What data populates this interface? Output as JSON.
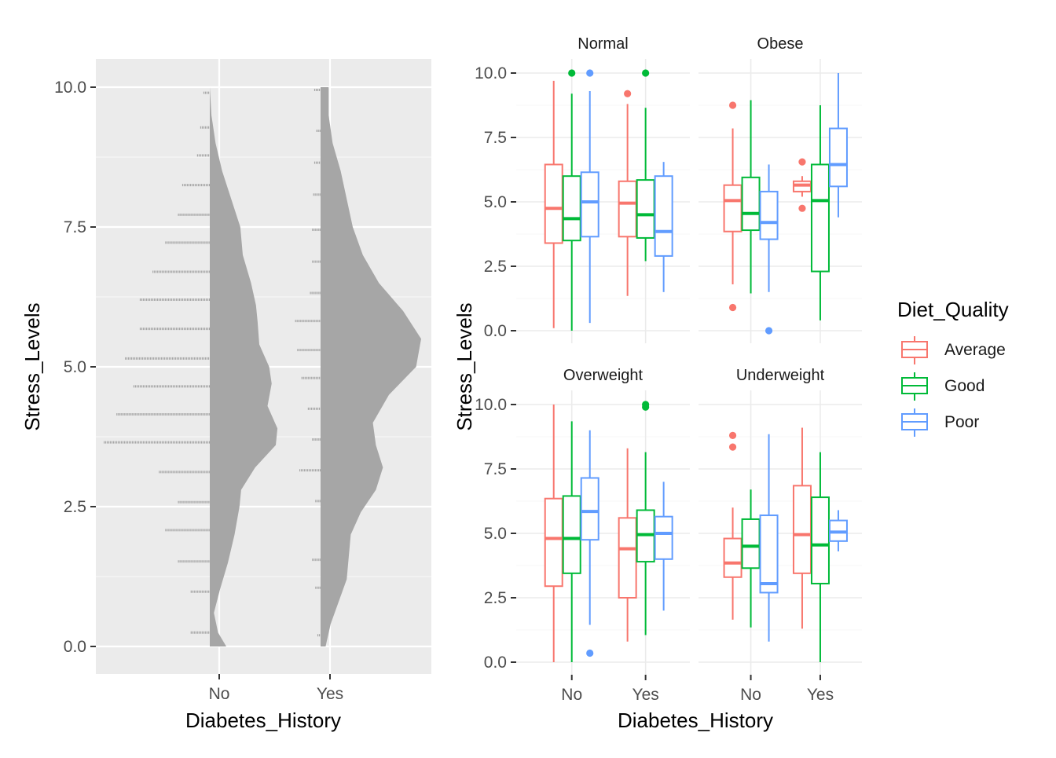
{
  "chart_data": [
    {
      "type": "raincloud",
      "xlabel": "Diabetes_History",
      "ylabel": "Stress_Levels",
      "categories": [
        "No",
        "Yes"
      ],
      "ylim": [
        0,
        10
      ],
      "y_ticks": [
        "0.0",
        "2.5",
        "5.0",
        "7.5",
        "10.0"
      ],
      "grid": true,
      "groups": [
        {
          "name": "No",
          "density_profile": [
            {
              "y": 0.0,
              "width": 0.2
            },
            {
              "y": 0.25,
              "width": 0.1
            },
            {
              "y": 0.6,
              "width": 0.05
            },
            {
              "y": 1.0,
              "width": 0.12
            },
            {
              "y": 1.5,
              "width": 0.22
            },
            {
              "y": 2.0,
              "width": 0.3
            },
            {
              "y": 2.5,
              "width": 0.36
            },
            {
              "y": 2.8,
              "width": 0.38
            },
            {
              "y": 3.2,
              "width": 0.55
            },
            {
              "y": 3.6,
              "width": 0.8
            },
            {
              "y": 3.9,
              "width": 0.82
            },
            {
              "y": 4.3,
              "width": 0.7
            },
            {
              "y": 4.7,
              "width": 0.75
            },
            {
              "y": 5.0,
              "width": 0.72
            },
            {
              "y": 5.4,
              "width": 0.6
            },
            {
              "y": 5.8,
              "width": 0.58
            },
            {
              "y": 6.1,
              "width": 0.56
            },
            {
              "y": 6.5,
              "width": 0.5
            },
            {
              "y": 7.0,
              "width": 0.4
            },
            {
              "y": 7.5,
              "width": 0.37
            },
            {
              "y": 8.0,
              "width": 0.26
            },
            {
              "y": 8.5,
              "width": 0.15
            },
            {
              "y": 9.0,
              "width": 0.07
            },
            {
              "y": 9.5,
              "width": 0.02
            },
            {
              "y": 10.0,
              "width": 0.0
            }
          ],
          "rain_bins": [
            {
              "y": 0.25,
              "count": 0.18
            },
            {
              "y": 0.98,
              "count": 0.18
            },
            {
              "y": 1.52,
              "count": 0.3
            },
            {
              "y": 2.08,
              "count": 0.42
            },
            {
              "y": 2.58,
              "count": 0.3
            },
            {
              "y": 3.12,
              "count": 0.48
            },
            {
              "y": 3.65,
              "count": 1.0
            },
            {
              "y": 4.15,
              "count": 0.88
            },
            {
              "y": 4.65,
              "count": 0.72
            },
            {
              "y": 5.15,
              "count": 0.8
            },
            {
              "y": 5.68,
              "count": 0.66
            },
            {
              "y": 6.2,
              "count": 0.66
            },
            {
              "y": 6.7,
              "count": 0.54
            },
            {
              "y": 7.22,
              "count": 0.42
            },
            {
              "y": 7.72,
              "count": 0.3
            },
            {
              "y": 8.25,
              "count": 0.26
            },
            {
              "y": 8.78,
              "count": 0.12
            },
            {
              "y": 9.28,
              "count": 0.09
            },
            {
              "y": 9.9,
              "count": 0.06
            }
          ]
        },
        {
          "name": "Yes",
          "density_profile": [
            {
              "y": 0.0,
              "width": 0.05
            },
            {
              "y": 0.4,
              "width": 0.1
            },
            {
              "y": 0.8,
              "width": 0.18
            },
            {
              "y": 1.2,
              "width": 0.26
            },
            {
              "y": 1.6,
              "width": 0.28
            },
            {
              "y": 2.0,
              "width": 0.3
            },
            {
              "y": 2.4,
              "width": 0.4
            },
            {
              "y": 2.8,
              "width": 0.55
            },
            {
              "y": 3.2,
              "width": 0.62
            },
            {
              "y": 3.6,
              "width": 0.55
            },
            {
              "y": 4.0,
              "width": 0.52
            },
            {
              "y": 4.5,
              "width": 0.68
            },
            {
              "y": 5.0,
              "width": 0.95
            },
            {
              "y": 5.5,
              "width": 1.0
            },
            {
              "y": 6.0,
              "width": 0.82
            },
            {
              "y": 6.5,
              "width": 0.58
            },
            {
              "y": 7.0,
              "width": 0.42
            },
            {
              "y": 7.5,
              "width": 0.32
            },
            {
              "y": 8.0,
              "width": 0.26
            },
            {
              "y": 8.5,
              "width": 0.2
            },
            {
              "y": 9.0,
              "width": 0.12
            },
            {
              "y": 9.5,
              "width": 0.08
            },
            {
              "y": 10.0,
              "width": 0.08
            }
          ],
          "rain_bins": [
            {
              "y": 0.2,
              "count": 0.03
            },
            {
              "y": 1.05,
              "count": 0.05
            },
            {
              "y": 1.55,
              "count": 0.08
            },
            {
              "y": 2.6,
              "count": 0.05
            },
            {
              "y": 3.15,
              "count": 0.2
            },
            {
              "y": 3.7,
              "count": 0.08
            },
            {
              "y": 4.25,
              "count": 0.12
            },
            {
              "y": 4.8,
              "count": 0.18
            },
            {
              "y": 5.3,
              "count": 0.22
            },
            {
              "y": 5.82,
              "count": 0.24
            },
            {
              "y": 6.32,
              "count": 0.1
            },
            {
              "y": 6.88,
              "count": 0.08
            },
            {
              "y": 7.45,
              "count": 0.08
            },
            {
              "y": 8.08,
              "count": 0.07
            },
            {
              "y": 8.65,
              "count": 0.06
            },
            {
              "y": 9.22,
              "count": 0.04
            },
            {
              "y": 9.95,
              "count": 0.06
            }
          ]
        }
      ]
    },
    {
      "type": "boxplot",
      "xlabel": "Diabetes_History",
      "ylabel": "Stress_Levels",
      "categories": [
        "No",
        "Yes"
      ],
      "ylim": [
        0,
        10
      ],
      "y_ticks": [
        "0.0",
        "2.5",
        "5.0",
        "7.5",
        "10.0"
      ],
      "grid": true,
      "legend": {
        "title": "Diet_Quality",
        "position": "right",
        "items": [
          {
            "name": "Average",
            "color": "#F8766D"
          },
          {
            "name": "Good",
            "color": "#00BA38"
          },
          {
            "name": "Poor",
            "color": "#619CFF"
          }
        ]
      },
      "facets": [
        {
          "title": "Normal",
          "groups": [
            {
              "x": "No",
              "diet": "Average",
              "min": 0.1,
              "q1": 3.4,
              "median": 4.75,
              "q3": 6.45,
              "max": 9.7,
              "outliers": []
            },
            {
              "x": "No",
              "diet": "Good",
              "min": 0.0,
              "q1": 3.5,
              "median": 4.35,
              "q3": 6.0,
              "max": 9.2,
              "outliers": [
                10.0
              ]
            },
            {
              "x": "No",
              "diet": "Poor",
              "min": 0.3,
              "q1": 3.65,
              "median": 5.0,
              "q3": 6.15,
              "max": 9.3,
              "outliers": [
                10.0
              ]
            },
            {
              "x": "Yes",
              "diet": "Average",
              "min": 1.35,
              "q1": 3.65,
              "median": 4.95,
              "q3": 5.8,
              "max": 8.8,
              "outliers": [
                9.2
              ]
            },
            {
              "x": "Yes",
              "diet": "Good",
              "min": 2.7,
              "q1": 3.6,
              "median": 4.5,
              "q3": 5.85,
              "max": 8.65,
              "outliers": [
                10.0
              ]
            },
            {
              "x": "Yes",
              "diet": "Poor",
              "min": 1.5,
              "q1": 2.9,
              "median": 3.85,
              "q3": 6.0,
              "max": 6.55,
              "outliers": []
            }
          ]
        },
        {
          "title": "Obese",
          "groups": [
            {
              "x": "No",
              "diet": "Average",
              "min": 1.8,
              "q1": 3.85,
              "median": 5.05,
              "q3": 5.65,
              "max": 7.85,
              "outliers": [
                8.75,
                0.9
              ]
            },
            {
              "x": "No",
              "diet": "Good",
              "min": 1.45,
              "q1": 3.9,
              "median": 4.55,
              "q3": 5.95,
              "max": 8.95,
              "outliers": []
            },
            {
              "x": "No",
              "diet": "Poor",
              "min": 1.5,
              "q1": 3.55,
              "median": 4.2,
              "q3": 5.4,
              "max": 6.45,
              "outliers": [
                0.0
              ]
            },
            {
              "x": "Yes",
              "diet": "Average",
              "min": 5.2,
              "q1": 5.4,
              "median": 5.65,
              "q3": 5.8,
              "max": 6.0,
              "outliers": [
                6.55,
                4.75
              ]
            },
            {
              "x": "Yes",
              "diet": "Good",
              "min": 0.4,
              "q1": 2.3,
              "median": 5.05,
              "q3": 6.45,
              "max": 8.75,
              "outliers": []
            },
            {
              "x": "Yes",
              "diet": "Poor",
              "min": 4.4,
              "q1": 5.6,
              "median": 6.45,
              "q3": 7.85,
              "max": 10.0,
              "outliers": []
            }
          ]
        },
        {
          "title": "Overweight",
          "groups": [
            {
              "x": "No",
              "diet": "Average",
              "min": 0.0,
              "q1": 2.95,
              "median": 4.8,
              "q3": 6.35,
              "max": 10.0,
              "outliers": []
            },
            {
              "x": "No",
              "diet": "Good",
              "min": 0.0,
              "q1": 3.45,
              "median": 4.8,
              "q3": 6.45,
              "max": 9.35,
              "outliers": []
            },
            {
              "x": "No",
              "diet": "Poor",
              "min": 1.45,
              "q1": 4.75,
              "median": 5.85,
              "q3": 7.15,
              "max": 9.0,
              "outliers": [
                0.35
              ]
            },
            {
              "x": "Yes",
              "diet": "Average",
              "min": 0.8,
              "q1": 2.5,
              "median": 4.4,
              "q3": 5.6,
              "max": 8.3,
              "outliers": []
            },
            {
              "x": "Yes",
              "diet": "Good",
              "min": 1.05,
              "q1": 3.9,
              "median": 4.95,
              "q3": 5.9,
              "max": 8.15,
              "outliers": [
                9.9,
                10.0
              ]
            },
            {
              "x": "Yes",
              "diet": "Poor",
              "min": 2.0,
              "q1": 4.0,
              "median": 5.0,
              "q3": 5.65,
              "max": 7.0,
              "outliers": []
            }
          ]
        },
        {
          "title": "Underweight",
          "groups": [
            {
              "x": "No",
              "diet": "Average",
              "min": 1.65,
              "q1": 3.3,
              "median": 3.85,
              "q3": 4.8,
              "max": 6.0,
              "outliers": [
                8.8,
                8.35
              ]
            },
            {
              "x": "No",
              "diet": "Good",
              "min": 1.35,
              "q1": 3.65,
              "median": 4.5,
              "q3": 5.55,
              "max": 6.7,
              "outliers": []
            },
            {
              "x": "No",
              "diet": "Poor",
              "min": 0.8,
              "q1": 2.7,
              "median": 3.05,
              "q3": 5.7,
              "max": 8.85,
              "outliers": []
            },
            {
              "x": "Yes",
              "diet": "Average",
              "min": 1.3,
              "q1": 3.45,
              "median": 4.95,
              "q3": 6.85,
              "max": 9.1,
              "outliers": []
            },
            {
              "x": "Yes",
              "diet": "Good",
              "min": 0.0,
              "q1": 3.05,
              "median": 4.55,
              "q3": 6.4,
              "max": 8.15,
              "outliers": []
            },
            {
              "x": "Yes",
              "diet": "Poor",
              "min": 4.3,
              "q1": 4.7,
              "median": 5.05,
              "q3": 5.5,
              "max": 5.9,
              "outliers": []
            }
          ]
        }
      ]
    }
  ]
}
